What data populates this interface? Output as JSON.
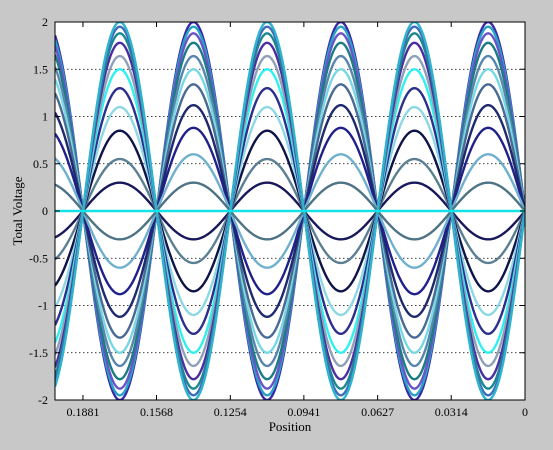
{
  "chart_data": {
    "type": "line",
    "title": "",
    "xlabel": "Position",
    "ylabel": "Total Voltage",
    "xlim": [
      0.2,
      0
    ],
    "xreversed": true,
    "ylim": [
      -2,
      2
    ],
    "xticks": [
      {
        "value": 0.1881,
        "label": "0.1881"
      },
      {
        "value": 0.1568,
        "label": "0.1568"
      },
      {
        "value": 0.1254,
        "label": "0.1254"
      },
      {
        "value": 0.0941,
        "label": "0.0941"
      },
      {
        "value": 0.0627,
        "label": "0.0627"
      },
      {
        "value": 0.0314,
        "label": "0.0314"
      },
      {
        "value": 0,
        "label": "0"
      }
    ],
    "yticks": [
      {
        "value": 2,
        "label": "2"
      },
      {
        "value": 1.5,
        "label": "1.5"
      },
      {
        "value": 1,
        "label": "1"
      },
      {
        "value": 0.5,
        "label": "0.5"
      },
      {
        "value": 0,
        "label": "0"
      },
      {
        "value": -0.5,
        "label": "-0.5"
      },
      {
        "value": -1,
        "label": "-1"
      },
      {
        "value": -1.5,
        "label": "-1.5"
      },
      {
        "value": -2,
        "label": "-2"
      }
    ],
    "grid": "horizontal-dotted",
    "curve_form": "y = amplitude * sin(2*pi*x / wavelength)",
    "wavelength": 0.0627,
    "series": [
      {
        "amplitude": 2.0,
        "color": "#3a2aa8"
      },
      {
        "amplitude": 1.95,
        "color": "#27a3c4"
      },
      {
        "amplitude": 1.88,
        "color": "#6a54c8"
      },
      {
        "amplitude": 1.78,
        "color": "#1b7d84"
      },
      {
        "amplitude": 1.64,
        "color": "#5a86ad"
      },
      {
        "amplitude": 1.5,
        "color": "#77d8e3"
      },
      {
        "amplitude": 1.34,
        "color": "#4a6a94"
      },
      {
        "amplitude": 1.12,
        "color": "#1e2a6e"
      },
      {
        "amplitude": 0.88,
        "color": "#20208a"
      },
      {
        "amplitude": 0.6,
        "color": "#6fb0cc"
      },
      {
        "amplitude": 0.3,
        "color": "#4d7385"
      },
      {
        "amplitude": -0.3,
        "color": "#18185a"
      },
      {
        "amplitude": -0.55,
        "color": "#5b7f93"
      },
      {
        "amplitude": -0.85,
        "color": "#0f1448"
      },
      {
        "amplitude": -1.1,
        "color": "#8ed8e4"
      },
      {
        "amplitude": -1.3,
        "color": "#2d2f8c"
      },
      {
        "amplitude": -1.5,
        "color": "#2ff0ee"
      },
      {
        "amplitude": -1.64,
        "color": "#8ea1b8"
      },
      {
        "amplitude": -1.78,
        "color": "#4b2fa0"
      },
      {
        "amplitude": -1.88,
        "color": "#1a8a8f"
      },
      {
        "amplitude": -1.95,
        "color": "#3f6bb8"
      },
      {
        "amplitude": -2.0,
        "color": "#30b3cd"
      },
      {
        "amplitude": 0.0,
        "color": "#14e2e6"
      }
    ]
  }
}
